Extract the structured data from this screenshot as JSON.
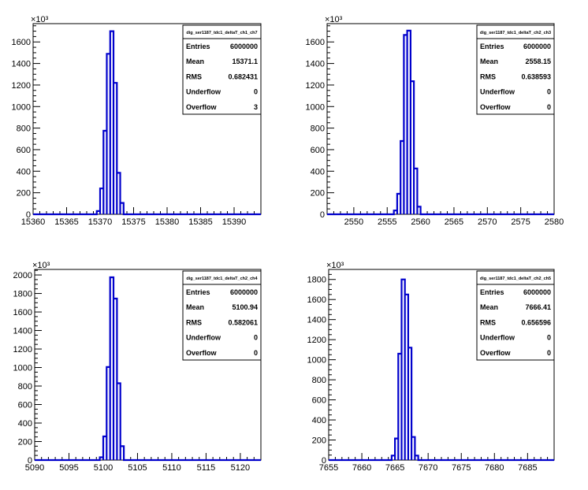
{
  "chart_data": [
    {
      "type": "histogram",
      "title": "dig_ser1187_tdc1_deltaT_ch1_ch7",
      "exponent_label": "×10³",
      "x_ticks": [
        "15360",
        "15365",
        "15370",
        "15375",
        "15380",
        "15385",
        "15390"
      ],
      "xlim": [
        15360,
        15394
      ],
      "y_ticks": [
        "0",
        "200",
        "400",
        "600",
        "800",
        "1000",
        "1200",
        "1400",
        "1600"
      ],
      "ylim": [
        0,
        1770
      ],
      "bin_width": 0.5,
      "bins": [
        {
          "x": 15369.5,
          "y": 30
        },
        {
          "x": 15370.0,
          "y": 240
        },
        {
          "x": 15370.5,
          "y": 775
        },
        {
          "x": 15371.0,
          "y": 1490
        },
        {
          "x": 15371.5,
          "y": 1700
        },
        {
          "x": 15372.0,
          "y": 1220
        },
        {
          "x": 15372.5,
          "y": 385
        },
        {
          "x": 15373.0,
          "y": 105
        }
      ],
      "stats": [
        {
          "label": "Entries",
          "value": "6000000"
        },
        {
          "label": "Mean",
          "value": "15371.1"
        },
        {
          "label": "RMS",
          "value": "0.682431"
        },
        {
          "label": "Underflow",
          "value": "0"
        },
        {
          "label": "Overflow",
          "value": "3"
        }
      ]
    },
    {
      "type": "histogram",
      "title": "dig_ser1187_tdc1_deltaT_ch2_ch3",
      "exponent_label": "×10³",
      "x_ticks": [
        "2550",
        "2555",
        "2560",
        "2565",
        "2570",
        "2575",
        "2580"
      ],
      "xlim": [
        2546,
        2580
      ],
      "y_ticks": [
        "0",
        "200",
        "400",
        "600",
        "800",
        "1000",
        "1200",
        "1400",
        "1600"
      ],
      "ylim": [
        0,
        1770
      ],
      "bin_width": 0.5,
      "bins": [
        {
          "x": 2556.0,
          "y": 35
        },
        {
          "x": 2556.5,
          "y": 190
        },
        {
          "x": 2557.0,
          "y": 680
        },
        {
          "x": 2557.5,
          "y": 1665
        },
        {
          "x": 2558.0,
          "y": 1705
        },
        {
          "x": 2558.5,
          "y": 1235
        },
        {
          "x": 2559.0,
          "y": 425
        },
        {
          "x": 2559.5,
          "y": 70
        }
      ],
      "stats": [
        {
          "label": "Entries",
          "value": "6000000"
        },
        {
          "label": "Mean",
          "value": "2558.15"
        },
        {
          "label": "RMS",
          "value": "0.638593"
        },
        {
          "label": "Underflow",
          "value": "0"
        },
        {
          "label": "Overflow",
          "value": "0"
        }
      ]
    },
    {
      "type": "histogram",
      "title": "dig_ser1187_tdc1_deltaT_ch2_ch4",
      "exponent_label": "×10³",
      "x_ticks": [
        "5090",
        "5095",
        "5100",
        "5105",
        "5110",
        "5115",
        "5120"
      ],
      "xlim": [
        5090,
        5123
      ],
      "y_ticks": [
        "0",
        "200",
        "400",
        "600",
        "800",
        "1000",
        "1200",
        "1400",
        "1600",
        "1800",
        "2000"
      ],
      "ylim": [
        0,
        2060
      ],
      "bin_width": 0.5,
      "bins": [
        {
          "x": 5099.5,
          "y": 30
        },
        {
          "x": 5100.0,
          "y": 255
        },
        {
          "x": 5100.5,
          "y": 1005
        },
        {
          "x": 5101.0,
          "y": 1975
        },
        {
          "x": 5101.5,
          "y": 1745
        },
        {
          "x": 5102.0,
          "y": 830
        },
        {
          "x": 5102.5,
          "y": 150
        }
      ],
      "stats": [
        {
          "label": "Entries",
          "value": "6000000"
        },
        {
          "label": "Mean",
          "value": "5100.94"
        },
        {
          "label": "RMS",
          "value": "0.582061"
        },
        {
          "label": "Underflow",
          "value": "0"
        },
        {
          "label": "Overflow",
          "value": "0"
        }
      ]
    },
    {
      "type": "histogram",
      "title": "dig_ser1187_tdc1_deltaT_ch2_ch5",
      "exponent_label": "×10³",
      "x_ticks": [
        "7655",
        "7660",
        "7665",
        "7670",
        "7675",
        "7680",
        "7685"
      ],
      "xlim": [
        7655,
        7689
      ],
      "y_ticks": [
        "0",
        "200",
        "400",
        "600",
        "800",
        "1000",
        "1200",
        "1400",
        "1600",
        "1800"
      ],
      "ylim": [
        0,
        1900
      ],
      "bin_width": 0.5,
      "bins": [
        {
          "x": 7664.5,
          "y": 45
        },
        {
          "x": 7665.0,
          "y": 215
        },
        {
          "x": 7665.5,
          "y": 1060
        },
        {
          "x": 7666.0,
          "y": 1800
        },
        {
          "x": 7666.5,
          "y": 1650
        },
        {
          "x": 7667.0,
          "y": 1120
        },
        {
          "x": 7667.5,
          "y": 230
        },
        {
          "x": 7668.0,
          "y": 45
        }
      ],
      "stats": [
        {
          "label": "Entries",
          "value": "6000000"
        },
        {
          "label": "Mean",
          "value": "7666.41"
        },
        {
          "label": "RMS",
          "value": "0.656596"
        },
        {
          "label": "Underflow",
          "value": "0"
        },
        {
          "label": "Overflow",
          "value": "0"
        }
      ]
    }
  ],
  "colors": {
    "histogram_line": "#0000cc",
    "axis": "#000000",
    "background": "#ffffff"
  }
}
